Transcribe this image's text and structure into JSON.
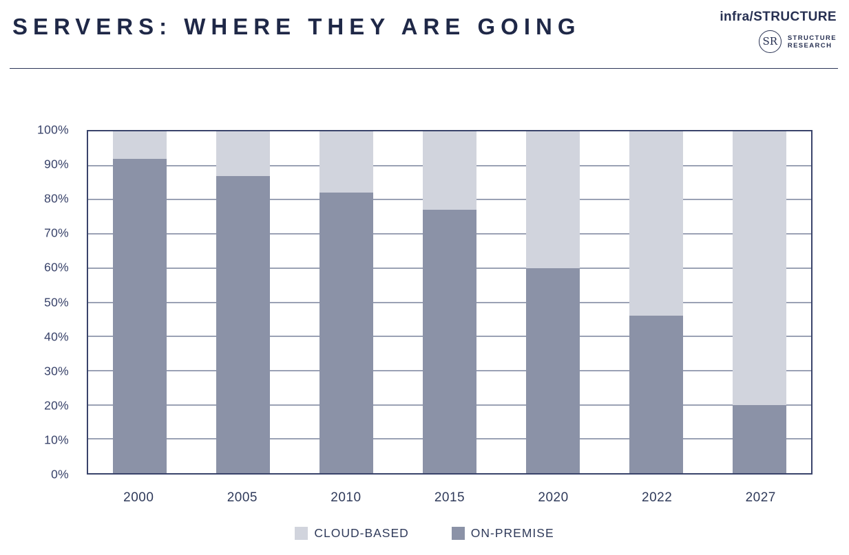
{
  "header": {
    "title": "SERVERS: WHERE THEY ARE GOING",
    "brand": {
      "wordmark": "infra/STRUCTURE",
      "emblem_text": "SR",
      "org_line1": "STRUCTURE",
      "org_line2": "RESEARCH"
    }
  },
  "chart_data": {
    "type": "bar",
    "stacked": true,
    "percent_stacked": true,
    "title": "",
    "xlabel": "",
    "ylabel": "",
    "categories": [
      "2000",
      "2005",
      "2010",
      "2015",
      "2020",
      "2022",
      "2027"
    ],
    "series": [
      {
        "name": "ON-PREMISE",
        "values": [
          92,
          87,
          82,
          77,
          60,
          46,
          20
        ],
        "color": "#8b92a7"
      },
      {
        "name": "CLOUD-BASED",
        "values": [
          8,
          13,
          18,
          23,
          40,
          54,
          80
        ],
        "color": "#d1d4dd"
      }
    ],
    "ylim": [
      0,
      100
    ],
    "y_ticks": [
      "0%",
      "10%",
      "20%",
      "30%",
      "40%",
      "50%",
      "60%",
      "70%",
      "80%",
      "90%",
      "100%"
    ],
    "grid": true,
    "gridline_color": "#9aa1b4",
    "plot_border_color": "#39436a",
    "legend_position": "bottom",
    "legend": [
      {
        "label": "CLOUD-BASED",
        "color": "#d1d4dd"
      },
      {
        "label": "ON-PREMISE",
        "color": "#8b92a7"
      }
    ]
  }
}
